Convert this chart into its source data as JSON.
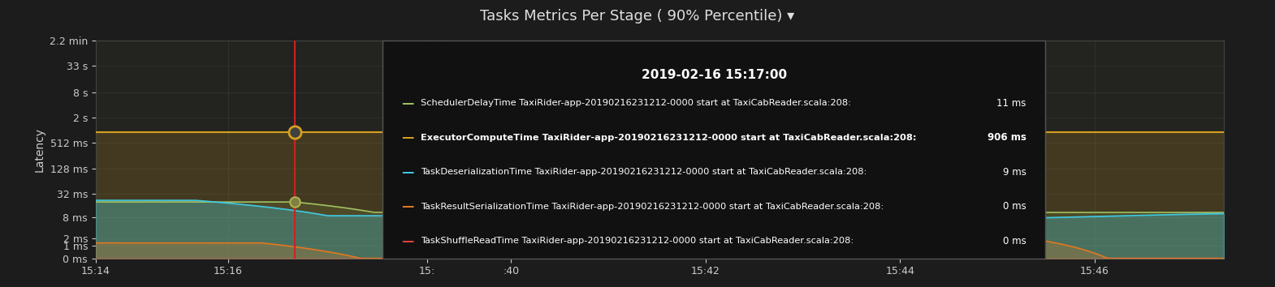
{
  "title": "Tasks Metrics Per Stage ( 90% Percentile) ▾",
  "ylabel": "Latency",
  "background_color": "#1c1c1c",
  "plot_bg_color": "#232320",
  "grid_color": "#3a3a3a",
  "title_color": "#e0e0e0",
  "label_color": "#cccccc",
  "ytick_labels": [
    "0 ms",
    "1 ms",
    "2 ms",
    "8 ms",
    "32 ms",
    "128 ms",
    "512 ms",
    "2 s",
    "8 s",
    "33 s",
    "2.2 min"
  ],
  "ytick_values": [
    0,
    1,
    2,
    8,
    32,
    128,
    512,
    2000,
    8000,
    33000,
    132000
  ],
  "xtick_labels_left": [
    "15:14",
    "15:16",
    "15:"
  ],
  "xtick_labels_right": [
    ":40",
    "15:42",
    "15:44",
    "15:46"
  ],
  "lines": [
    {
      "name": "SchedulerDelayTime",
      "color": "#a0c060",
      "label": "SchedulerDelayTime TaxiRider-app-20190216231212-0000 start at TaxiCabReader.scala:208:",
      "value_str": "11 ms",
      "bold": false
    },
    {
      "name": "ExecutorComputeTime",
      "color": "#d4a020",
      "label": "ExecutorComputeTime TaxiRider-app-20190216231212-0000 start at TaxiCabReader.scala:208:",
      "value_str": "906 ms",
      "bold": true
    },
    {
      "name": "TaskDeserializationTime",
      "color": "#40c8e0",
      "label": "TaskDeserializationTime TaxiRider-app-20190216231212-0000 start at TaxiCabReader.scala:208:",
      "value_str": "9 ms",
      "bold": false
    },
    {
      "name": "TaskResultSerializationTime",
      "color": "#e07820",
      "label": "TaskResultSerializationTime TaxiRider-app-20190216231212-0000 start at TaxiCabReader.scala:208:",
      "value_str": "0 ms",
      "bold": false
    },
    {
      "name": "TaskShuffleReadTime",
      "color": "#e04040",
      "label": "TaskShuffleReadTime TaxiRider-app-20190216231212-0000 start at TaxiCabReader.scala:208:",
      "value_str": "0 ms",
      "bold": false
    }
  ],
  "tooltip": {
    "timestamp": "2019-02-16 15:17:00"
  },
  "crosshair_color": "#cc2222"
}
